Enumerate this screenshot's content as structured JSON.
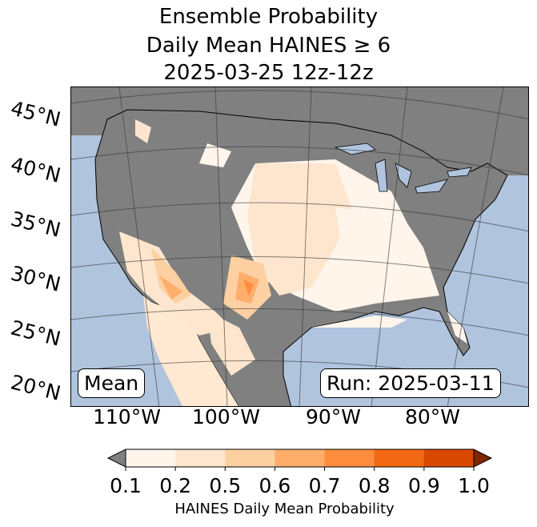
{
  "title": {
    "line1": "Ensemble Probability",
    "line2": "Daily Mean HAINES ≥ 6",
    "line3": "2025-03-25 12z-12z"
  },
  "map": {
    "lat_labels": [
      "45°N",
      "40°N",
      "35°N",
      "30°N",
      "25°N",
      "20°N"
    ],
    "lon_labels": [
      "110°W",
      "100°W",
      "90°W",
      "80°W"
    ],
    "left_box": "Mean",
    "right_box": "Run: 2025-03-11",
    "colors": {
      "ocean": "#b0c4de",
      "land_masked": "#808080"
    }
  },
  "colorbar": {
    "ticks": [
      "0.1",
      "0.2",
      "0.5",
      "0.6",
      "0.7",
      "0.8",
      "0.9",
      "1.0"
    ],
    "colors": [
      "#fff5eb",
      "#fee6ce",
      "#fdd0a2",
      "#fdae6b",
      "#fd8d3c",
      "#f16913",
      "#d94801"
    ],
    "under_color": "#808080",
    "over_color": "#7f2704",
    "label": "HAINES Daily Mean Probability"
  }
}
